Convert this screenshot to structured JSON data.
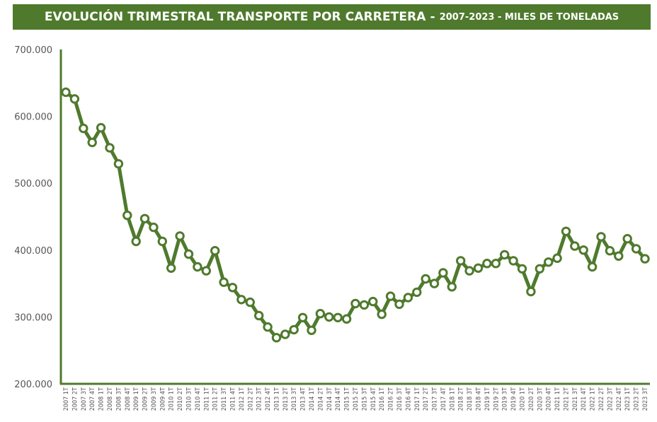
{
  "header": {
    "title": "EVOLUCIÓN TRIMESTRAL TRANSPORTE POR CARRETERA -",
    "subtitle": "2007-2023 - MILES DE TONELADAS"
  },
  "colors": {
    "accent": "#4f7a2d",
    "axis_text": "#555555"
  },
  "chart_data": {
    "type": "line",
    "title": "EVOLUCIÓN TRIMESTRAL TRANSPORTE POR CARRETERA - 2007-2023 - MILES DE TONELADAS",
    "xlabel": "",
    "ylabel": "",
    "ylim": [
      200000,
      700000
    ],
    "yticks": [
      200000,
      300000,
      400000,
      500000,
      600000,
      700000
    ],
    "ytick_labels": [
      "200.000",
      "300.000",
      "400.000",
      "500.000",
      "600.000",
      "700.000"
    ],
    "grid": false,
    "legend": "none",
    "categories": [
      "2007 1T",
      "2007 2T",
      "2007 3T",
      "2007 4T",
      "2008 1T",
      "2008 2T",
      "2008 3T",
      "2008 4T",
      "2009 1T",
      "2009 2T",
      "2009 3T",
      "2009 4T",
      "2010 1T",
      "2010 2T",
      "2010 3T",
      "2010 4T",
      "2011 1T",
      "2011 2T",
      "2011 3T",
      "2011 4T",
      "2012 1T",
      "2012 2T",
      "2012 3T",
      "2012 4T",
      "2013 1T",
      "2013 2T",
      "2013 3T",
      "2013 4T",
      "2014 1T",
      "2014 2T",
      "2014 3T",
      "2014 4T",
      "2015 1T",
      "2015 2T",
      "2015 3T",
      "2015 4T",
      "2016 1T",
      "2016 2T",
      "2016 3T",
      "2016 4T",
      "2017 1T",
      "2017 2T",
      "2017 3T",
      "2017 4T",
      "2018 1T",
      "2018 2T",
      "2018 3T",
      "2018 4T",
      "2019 1T",
      "2019 2T",
      "2019 3T",
      "2019 4T",
      "2020 1T",
      "2020 2T",
      "2020 3T",
      "2020 4T",
      "2021 1T",
      "2021 2T",
      "2021 3T",
      "2021 4T",
      "2022 1T",
      "2022 2T",
      "2022 3T",
      "2022 4T",
      "2023 1T",
      "2023 2T",
      "2023 3T"
    ],
    "series": [
      {
        "values": [
          636000,
          626000,
          582000,
          561000,
          583000,
          553000,
          529000,
          452000,
          413000,
          447000,
          434000,
          413000,
          373000,
          421000,
          394000,
          375000,
          369000,
          399000,
          352000,
          344000,
          326000,
          322000,
          302000,
          285000,
          269000,
          274000,
          281000,
          299000,
          280000,
          305000,
          300000,
          299000,
          297000,
          320000,
          318000,
          323000,
          304000,
          331000,
          319000,
          329000,
          337000,
          357000,
          350000,
          366000,
          345000,
          384000,
          369000,
          373000,
          380000,
          380000,
          393000,
          384000,
          372000,
          338000,
          372000,
          382000,
          388000,
          428000,
          406000,
          400000,
          375000,
          420000,
          399000,
          391000,
          417000,
          402000,
          387000
        ]
      }
    ]
  }
}
